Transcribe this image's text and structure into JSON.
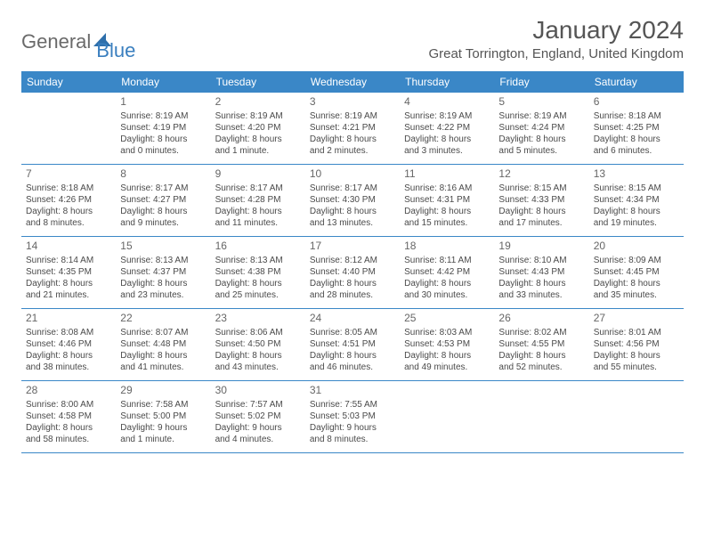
{
  "logo": {
    "part1": "General",
    "part2": "Blue"
  },
  "title": "January 2024",
  "location": "Great Torrington, England, United Kingdom",
  "weekdays": [
    "Sunday",
    "Monday",
    "Tuesday",
    "Wednesday",
    "Thursday",
    "Friday",
    "Saturday"
  ],
  "header_bg": "#3a87c7",
  "weeks": [
    [
      {
        "num": "",
        "sunrise": "",
        "sunset": "",
        "daylight1": "",
        "daylight2": ""
      },
      {
        "num": "1",
        "sunrise": "Sunrise: 8:19 AM",
        "sunset": "Sunset: 4:19 PM",
        "daylight1": "Daylight: 8 hours",
        "daylight2": "and 0 minutes."
      },
      {
        "num": "2",
        "sunrise": "Sunrise: 8:19 AM",
        "sunset": "Sunset: 4:20 PM",
        "daylight1": "Daylight: 8 hours",
        "daylight2": "and 1 minute."
      },
      {
        "num": "3",
        "sunrise": "Sunrise: 8:19 AM",
        "sunset": "Sunset: 4:21 PM",
        "daylight1": "Daylight: 8 hours",
        "daylight2": "and 2 minutes."
      },
      {
        "num": "4",
        "sunrise": "Sunrise: 8:19 AM",
        "sunset": "Sunset: 4:22 PM",
        "daylight1": "Daylight: 8 hours",
        "daylight2": "and 3 minutes."
      },
      {
        "num": "5",
        "sunrise": "Sunrise: 8:19 AM",
        "sunset": "Sunset: 4:24 PM",
        "daylight1": "Daylight: 8 hours",
        "daylight2": "and 5 minutes."
      },
      {
        "num": "6",
        "sunrise": "Sunrise: 8:18 AM",
        "sunset": "Sunset: 4:25 PM",
        "daylight1": "Daylight: 8 hours",
        "daylight2": "and 6 minutes."
      }
    ],
    [
      {
        "num": "7",
        "sunrise": "Sunrise: 8:18 AM",
        "sunset": "Sunset: 4:26 PM",
        "daylight1": "Daylight: 8 hours",
        "daylight2": "and 8 minutes."
      },
      {
        "num": "8",
        "sunrise": "Sunrise: 8:17 AM",
        "sunset": "Sunset: 4:27 PM",
        "daylight1": "Daylight: 8 hours",
        "daylight2": "and 9 minutes."
      },
      {
        "num": "9",
        "sunrise": "Sunrise: 8:17 AM",
        "sunset": "Sunset: 4:28 PM",
        "daylight1": "Daylight: 8 hours",
        "daylight2": "and 11 minutes."
      },
      {
        "num": "10",
        "sunrise": "Sunrise: 8:17 AM",
        "sunset": "Sunset: 4:30 PM",
        "daylight1": "Daylight: 8 hours",
        "daylight2": "and 13 minutes."
      },
      {
        "num": "11",
        "sunrise": "Sunrise: 8:16 AM",
        "sunset": "Sunset: 4:31 PM",
        "daylight1": "Daylight: 8 hours",
        "daylight2": "and 15 minutes."
      },
      {
        "num": "12",
        "sunrise": "Sunrise: 8:15 AM",
        "sunset": "Sunset: 4:33 PM",
        "daylight1": "Daylight: 8 hours",
        "daylight2": "and 17 minutes."
      },
      {
        "num": "13",
        "sunrise": "Sunrise: 8:15 AM",
        "sunset": "Sunset: 4:34 PM",
        "daylight1": "Daylight: 8 hours",
        "daylight2": "and 19 minutes."
      }
    ],
    [
      {
        "num": "14",
        "sunrise": "Sunrise: 8:14 AM",
        "sunset": "Sunset: 4:35 PM",
        "daylight1": "Daylight: 8 hours",
        "daylight2": "and 21 minutes."
      },
      {
        "num": "15",
        "sunrise": "Sunrise: 8:13 AM",
        "sunset": "Sunset: 4:37 PM",
        "daylight1": "Daylight: 8 hours",
        "daylight2": "and 23 minutes."
      },
      {
        "num": "16",
        "sunrise": "Sunrise: 8:13 AM",
        "sunset": "Sunset: 4:38 PM",
        "daylight1": "Daylight: 8 hours",
        "daylight2": "and 25 minutes."
      },
      {
        "num": "17",
        "sunrise": "Sunrise: 8:12 AM",
        "sunset": "Sunset: 4:40 PM",
        "daylight1": "Daylight: 8 hours",
        "daylight2": "and 28 minutes."
      },
      {
        "num": "18",
        "sunrise": "Sunrise: 8:11 AM",
        "sunset": "Sunset: 4:42 PM",
        "daylight1": "Daylight: 8 hours",
        "daylight2": "and 30 minutes."
      },
      {
        "num": "19",
        "sunrise": "Sunrise: 8:10 AM",
        "sunset": "Sunset: 4:43 PM",
        "daylight1": "Daylight: 8 hours",
        "daylight2": "and 33 minutes."
      },
      {
        "num": "20",
        "sunrise": "Sunrise: 8:09 AM",
        "sunset": "Sunset: 4:45 PM",
        "daylight1": "Daylight: 8 hours",
        "daylight2": "and 35 minutes."
      }
    ],
    [
      {
        "num": "21",
        "sunrise": "Sunrise: 8:08 AM",
        "sunset": "Sunset: 4:46 PM",
        "daylight1": "Daylight: 8 hours",
        "daylight2": "and 38 minutes."
      },
      {
        "num": "22",
        "sunrise": "Sunrise: 8:07 AM",
        "sunset": "Sunset: 4:48 PM",
        "daylight1": "Daylight: 8 hours",
        "daylight2": "and 41 minutes."
      },
      {
        "num": "23",
        "sunrise": "Sunrise: 8:06 AM",
        "sunset": "Sunset: 4:50 PM",
        "daylight1": "Daylight: 8 hours",
        "daylight2": "and 43 minutes."
      },
      {
        "num": "24",
        "sunrise": "Sunrise: 8:05 AM",
        "sunset": "Sunset: 4:51 PM",
        "daylight1": "Daylight: 8 hours",
        "daylight2": "and 46 minutes."
      },
      {
        "num": "25",
        "sunrise": "Sunrise: 8:03 AM",
        "sunset": "Sunset: 4:53 PM",
        "daylight1": "Daylight: 8 hours",
        "daylight2": "and 49 minutes."
      },
      {
        "num": "26",
        "sunrise": "Sunrise: 8:02 AM",
        "sunset": "Sunset: 4:55 PM",
        "daylight1": "Daylight: 8 hours",
        "daylight2": "and 52 minutes."
      },
      {
        "num": "27",
        "sunrise": "Sunrise: 8:01 AM",
        "sunset": "Sunset: 4:56 PM",
        "daylight1": "Daylight: 8 hours",
        "daylight2": "and 55 minutes."
      }
    ],
    [
      {
        "num": "28",
        "sunrise": "Sunrise: 8:00 AM",
        "sunset": "Sunset: 4:58 PM",
        "daylight1": "Daylight: 8 hours",
        "daylight2": "and 58 minutes."
      },
      {
        "num": "29",
        "sunrise": "Sunrise: 7:58 AM",
        "sunset": "Sunset: 5:00 PM",
        "daylight1": "Daylight: 9 hours",
        "daylight2": "and 1 minute."
      },
      {
        "num": "30",
        "sunrise": "Sunrise: 7:57 AM",
        "sunset": "Sunset: 5:02 PM",
        "daylight1": "Daylight: 9 hours",
        "daylight2": "and 4 minutes."
      },
      {
        "num": "31",
        "sunrise": "Sunrise: 7:55 AM",
        "sunset": "Sunset: 5:03 PM",
        "daylight1": "Daylight: 9 hours",
        "daylight2": "and 8 minutes."
      },
      {
        "num": "",
        "sunrise": "",
        "sunset": "",
        "daylight1": "",
        "daylight2": ""
      },
      {
        "num": "",
        "sunrise": "",
        "sunset": "",
        "daylight1": "",
        "daylight2": ""
      },
      {
        "num": "",
        "sunrise": "",
        "sunset": "",
        "daylight1": "",
        "daylight2": ""
      }
    ]
  ]
}
